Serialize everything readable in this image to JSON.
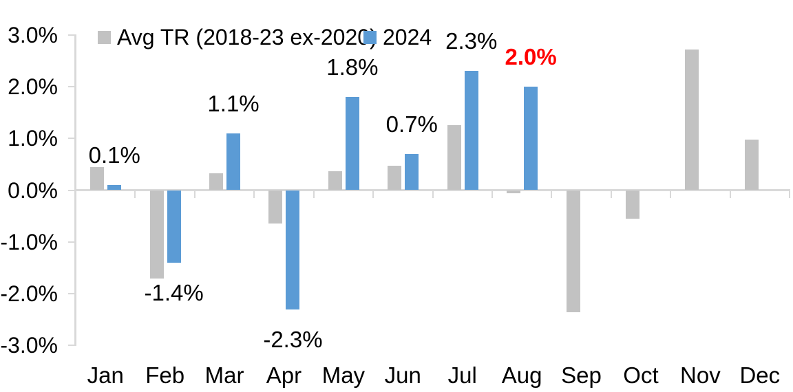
{
  "chart_data": {
    "type": "bar",
    "title": "",
    "xlabel": "",
    "ylabel": "",
    "categories": [
      "Jan",
      "Feb",
      "Mar",
      "Apr",
      "May",
      "Jun",
      "Jul",
      "Aug",
      "Sep",
      "Oct",
      "Nov",
      "Dec"
    ],
    "series": [
      {
        "name": "Avg TR (2018-23 ex-2020)",
        "color": "#C2C2C2",
        "values": [
          0.45,
          -1.7,
          0.32,
          -0.65,
          0.37,
          0.47,
          1.25,
          -0.06,
          -2.35,
          -0.55,
          2.72,
          0.97
        ]
      },
      {
        "name": "2024",
        "color": "#5B9BD5",
        "values": [
          0.1,
          -1.4,
          1.1,
          -2.3,
          1.8,
          0.7,
          2.3,
          2.0,
          null,
          null,
          null,
          null
        ],
        "data_labels": [
          "0.1%",
          "-1.4%",
          "1.1%",
          "-2.3%",
          "1.8%",
          "0.7%",
          "2.3%",
          "2.0%",
          null,
          null,
          null,
          null
        ],
        "data_label_colors": [
          "#000000",
          "#000000",
          "#000000",
          "#000000",
          "#000000",
          "#000000",
          "#000000",
          "#FF0000",
          null,
          null,
          null,
          null
        ],
        "data_label_bold": [
          false,
          false,
          false,
          false,
          false,
          false,
          false,
          true,
          null,
          null,
          null,
          null
        ]
      }
    ],
    "ylim": [
      -3.0,
      3.0
    ],
    "ytick_step": 1.0,
    "ytick_labels": [
      "3.0%",
      "2.0%",
      "1.0%",
      "0.0%",
      "-1.0%",
      "-2.0%",
      "-3.0%"
    ],
    "ytick_values": [
      3,
      2,
      1,
      0,
      -1,
      -2,
      -3
    ],
    "grid": false,
    "legend_position": "top",
    "axis_color": "#D9D9D9",
    "text_color": "#000000",
    "highlight": {
      "category": "Aug",
      "series": "2024",
      "label": "2.0%",
      "color": "#FF0000",
      "bold": true
    }
  }
}
